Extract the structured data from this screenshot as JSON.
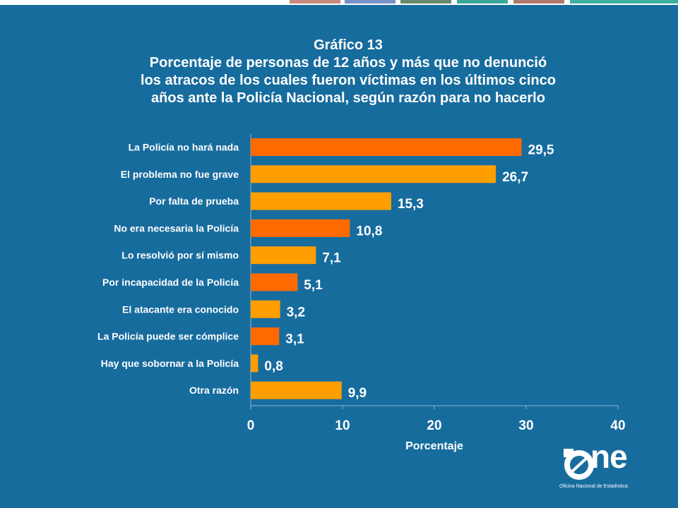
{
  "header": {
    "title_line1": "Gráfico 13",
    "title_line2": "Porcentaje de personas de 12 años y más que no denunció",
    "title_line3": "los atracos de los cuales fueron víctimas en los últimos cinco",
    "title_line4": "años ante la Policía Nacional, según razón para no hacerlo"
  },
  "colors": {
    "background": "#176c9e",
    "bar_dark": "#ff6a00",
    "bar_light": "#ff9e00",
    "text": "#ffffff",
    "top_swatches": [
      "#c98a7c",
      "#7891c6",
      "#6a8a6d",
      "#3aa79a",
      "#b2786e",
      "#3bb0a2"
    ]
  },
  "chart_data": {
    "type": "bar",
    "orientation": "horizontal",
    "categories": [
      "La Policía no hará nada",
      "El problema no fue grave",
      "Por falta de prueba",
      "No era necesaria la Policía",
      "Lo resolvió por sí mismo",
      "Por incapacidad de la Policía",
      "El atacante era conocido",
      "La Policía puede ser cómplice",
      "Hay que sobornar a la Policía",
      "Otra razón"
    ],
    "values": [
      29.5,
      26.7,
      15.3,
      10.8,
      7.1,
      5.1,
      3.2,
      3.1,
      0.8,
      9.9
    ],
    "value_labels": [
      "29,5",
      "26,7",
      "15,3",
      "10,8",
      "7,1",
      "5,1",
      "3,2",
      "3,1",
      "0,8",
      "9,9"
    ],
    "bar_colors": [
      "#ff6a00",
      "#ff9e00",
      "#ff9e00",
      "#ff6a00",
      "#ff9e00",
      "#ff6a00",
      "#ff9e00",
      "#ff6a00",
      "#ff9e00",
      "#ff9e00"
    ],
    "xlim": [
      0,
      40
    ],
    "xticks": [
      0,
      10,
      20,
      30,
      40
    ],
    "xlabel": "Porcentaje",
    "ylabel": "",
    "grid": false,
    "legend": "none"
  },
  "logo": {
    "word": "ne",
    "subtitle": "Oficina Nacional de Estadística"
  }
}
